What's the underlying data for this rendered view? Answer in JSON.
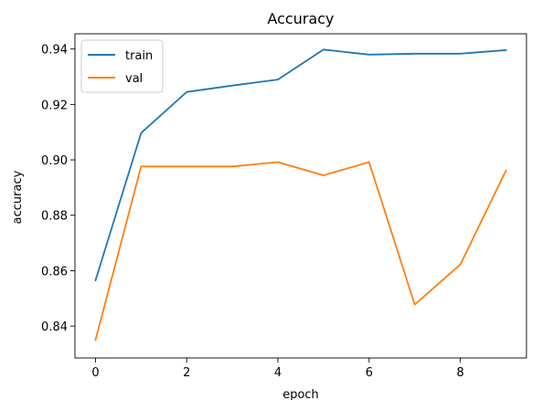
{
  "chart_data": {
    "type": "line",
    "title": "Accuracy",
    "xlabel": "epoch",
    "ylabel": "accuracy",
    "x": [
      0,
      1,
      2,
      3,
      4,
      5,
      6,
      7,
      8,
      9
    ],
    "xlim": [
      -0.45,
      9.45
    ],
    "ylim": [
      0.8285,
      0.9455
    ],
    "xticks": [
      0,
      2,
      4,
      6,
      8
    ],
    "xtick_labels": [
      "0",
      "2",
      "4",
      "6",
      "8"
    ],
    "yticks": [
      0.84,
      0.86,
      0.88,
      0.9,
      0.92,
      0.94
    ],
    "ytick_labels": [
      "0.84",
      "0.86",
      "0.88",
      "0.90",
      "0.92",
      "0.94"
    ],
    "grid": false,
    "legend_position": "top-left",
    "series": [
      {
        "name": "train",
        "color": "#1f77b4",
        "values": [
          0.8565,
          0.9097,
          0.9245,
          0.9268,
          0.929,
          0.9398,
          0.938,
          0.9383,
          0.9383,
          0.9396
        ]
      },
      {
        "name": "val",
        "color": "#ff7f0e",
        "values": [
          0.835,
          0.8976,
          0.8976,
          0.8976,
          0.8992,
          0.8944,
          0.8992,
          0.8478,
          0.8622,
          0.8961
        ]
      }
    ]
  }
}
